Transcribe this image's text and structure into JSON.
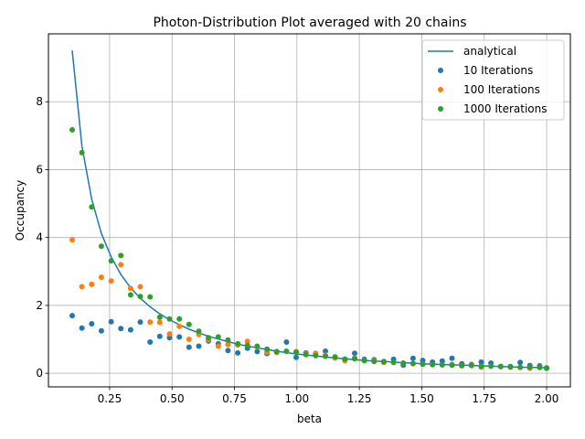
{
  "chart_data": {
    "type": "scatter",
    "title": "Photon-Distribution Plot averaged with 20 chains",
    "xlabel": "beta",
    "ylabel": "Occupancy",
    "xlim": [
      0.005,
      2.095
    ],
    "ylim": [
      -0.4,
      10.0
    ],
    "grid": true,
    "legend_position": "top-right",
    "x_ticks": [
      0.25,
      0.5,
      0.75,
      1.0,
      1.25,
      1.5,
      1.75,
      2.0
    ],
    "x_tick_labels": [
      "0.25",
      "0.50",
      "0.75",
      "1.00",
      "1.25",
      "1.50",
      "1.75",
      "2.00"
    ],
    "y_ticks": [
      0,
      2,
      4,
      6,
      8
    ],
    "y_tick_labels": [
      "0",
      "2",
      "4",
      "6",
      "8"
    ],
    "x": [
      0.1,
      0.139,
      0.178,
      0.217,
      0.256,
      0.295,
      0.334,
      0.373,
      0.412,
      0.451,
      0.49,
      0.529,
      0.568,
      0.607,
      0.646,
      0.685,
      0.724,
      0.763,
      0.802,
      0.841,
      0.88,
      0.919,
      0.958,
      0.997,
      1.036,
      1.075,
      1.114,
      1.153,
      1.192,
      1.231,
      1.27,
      1.309,
      1.348,
      1.387,
      1.426,
      1.465,
      1.504,
      1.543,
      1.582,
      1.621,
      1.66,
      1.699,
      1.738,
      1.777,
      1.816,
      1.855,
      1.894,
      1.933,
      1.972,
      2.0
    ],
    "series": [
      {
        "name": "analytical",
        "kind": "line",
        "color": "#1f77b4",
        "values": [
          9.51,
          6.7,
          5.13,
          4.12,
          3.43,
          2.91,
          2.52,
          2.21,
          1.96,
          1.75,
          1.58,
          1.43,
          1.3,
          1.19,
          1.09,
          1.01,
          0.93,
          0.86,
          0.8,
          0.75,
          0.7,
          0.65,
          0.61,
          0.57,
          0.54,
          0.51,
          0.48,
          0.45,
          0.43,
          0.4,
          0.38,
          0.36,
          0.35,
          0.33,
          0.31,
          0.3,
          0.28,
          0.27,
          0.26,
          0.25,
          0.24,
          0.23,
          0.22,
          0.21,
          0.2,
          0.19,
          0.18,
          0.17,
          0.17,
          0.16
        ]
      },
      {
        "name": "10 Iterations",
        "kind": "scatter",
        "color": "#1f77b4",
        "values": [
          1.7,
          1.33,
          1.46,
          1.25,
          1.52,
          1.32,
          1.28,
          1.51,
          0.92,
          1.09,
          1.05,
          1.07,
          0.77,
          0.8,
          0.95,
          0.87,
          0.67,
          0.6,
          0.74,
          0.64,
          0.58,
          0.62,
          0.92,
          0.47,
          0.6,
          0.55,
          0.65,
          0.47,
          0.41,
          0.59,
          0.41,
          0.4,
          0.35,
          0.41,
          0.24,
          0.44,
          0.38,
          0.33,
          0.36,
          0.44,
          0.28,
          0.26,
          0.33,
          0.3,
          0.2,
          0.2,
          0.32,
          0.23,
          0.22,
          0.15
        ]
      },
      {
        "name": "100 Iterations",
        "kind": "scatter",
        "color": "#ff7f0e",
        "values": [
          3.93,
          2.55,
          2.62,
          2.83,
          2.72,
          3.2,
          2.5,
          2.55,
          1.51,
          1.5,
          1.16,
          1.38,
          1.0,
          1.14,
          0.99,
          0.8,
          0.85,
          0.83,
          0.94,
          0.78,
          0.62,
          0.61,
          0.64,
          0.64,
          0.57,
          0.59,
          0.53,
          0.45,
          0.37,
          0.45,
          0.38,
          0.37,
          0.32,
          0.32,
          0.3,
          0.28,
          0.27,
          0.25,
          0.25,
          0.26,
          0.22,
          0.24,
          0.18,
          0.21,
          0.2,
          0.18,
          0.17,
          0.15,
          0.17,
          0.16
        ]
      },
      {
        "name": "1000 Iterations",
        "kind": "scatter",
        "color": "#2ca02c",
        "values": [
          7.17,
          6.5,
          4.9,
          3.74,
          3.31,
          3.47,
          2.31,
          2.26,
          2.25,
          1.65,
          1.6,
          1.6,
          1.44,
          1.24,
          1.05,
          1.07,
          0.98,
          0.87,
          0.82,
          0.8,
          0.71,
          0.64,
          0.65,
          0.62,
          0.55,
          0.52,
          0.5,
          0.48,
          0.42,
          0.43,
          0.37,
          0.35,
          0.34,
          0.32,
          0.3,
          0.29,
          0.27,
          0.26,
          0.25,
          0.24,
          0.23,
          0.23,
          0.21,
          0.21,
          0.2,
          0.19,
          0.18,
          0.18,
          0.17,
          0.16
        ]
      }
    ]
  }
}
